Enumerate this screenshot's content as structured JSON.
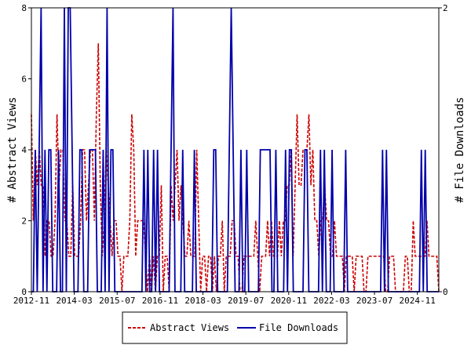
{
  "chart_data": {
    "type": "line",
    "title": "",
    "x_tick_labels": [
      "2012-11",
      "2014-03",
      "2015-07",
      "2016-11",
      "2018-03",
      "2019-07",
      "2020-11",
      "2022-03",
      "2023-07",
      "2024-11"
    ],
    "x_range": [
      "2012-11",
      "2025-07"
    ],
    "left_axis": {
      "label": "# Abstract Views",
      "range": [
        0,
        8
      ],
      "ticks": [
        "0",
        "2",
        "4",
        "6",
        "8"
      ]
    },
    "right_axis": {
      "label": "# File Downloads",
      "range": [
        0,
        2
      ],
      "ticks": [
        "0",
        "2"
      ]
    },
    "grid": false,
    "legend_position": "bottom",
    "series": [
      {
        "name": "Abstract Views",
        "axis": "left",
        "color": "#cc0000",
        "style": "dashed",
        "values": [
          5,
          2,
          4,
          3,
          4,
          3,
          3,
          1,
          2,
          2,
          1,
          1,
          2,
          5,
          3,
          4,
          4,
          2,
          2,
          1,
          1,
          3,
          1,
          1,
          1,
          2,
          4,
          4,
          2,
          3,
          4,
          4,
          2,
          5,
          7,
          3,
          1,
          2,
          4,
          3,
          2,
          1,
          2,
          2,
          1,
          1,
          0,
          1,
          1,
          1,
          2,
          5,
          4,
          1,
          2,
          2,
          2,
          2,
          1,
          0,
          1,
          0,
          1,
          0,
          1,
          1,
          3,
          0,
          1,
          1,
          0,
          3,
          2,
          3,
          4,
          2,
          3,
          2,
          1,
          1,
          2,
          1,
          1,
          1,
          4,
          2,
          0,
          1,
          1,
          0,
          1,
          1,
          0,
          1,
          0,
          1,
          1,
          2,
          0,
          1,
          1,
          1,
          2,
          2,
          1,
          1,
          0,
          0,
          1,
          1,
          1,
          1,
          1,
          1,
          2,
          1,
          0,
          1,
          1,
          1,
          2,
          1,
          2,
          1,
          1,
          1,
          2,
          1,
          2,
          2,
          3,
          3,
          4,
          1,
          3,
          5,
          3,
          3,
          4,
          4,
          4,
          5,
          3,
          4,
          2,
          2,
          1,
          2,
          2,
          3,
          2,
          2,
          1,
          1,
          2,
          1,
          1,
          1,
          1,
          0,
          1,
          1,
          1,
          1,
          0,
          1,
          1,
          1,
          1,
          0,
          0,
          1,
          1,
          1,
          1,
          1,
          1,
          1,
          1,
          1,
          0,
          0,
          1,
          1,
          1,
          0,
          0,
          0,
          0,
          0,
          1,
          1,
          0,
          0,
          2,
          1,
          1,
          1,
          1,
          1,
          1,
          2,
          1,
          1,
          1,
          1,
          1,
          0
        ]
      },
      {
        "name": "File Downloads",
        "axis": "right",
        "color": "#0000aa",
        "style": "solid",
        "values": [
          0,
          0,
          1,
          0,
          1,
          2,
          0,
          1,
          0,
          1,
          1,
          0,
          0,
          0,
          1,
          0,
          0,
          2,
          0,
          2,
          2,
          1,
          0,
          0,
          0,
          1,
          1,
          0,
          0,
          0,
          1,
          1,
          1,
          1,
          0,
          0,
          0,
          1,
          0,
          2,
          0,
          1,
          1,
          0,
          0,
          0,
          0,
          0,
          0,
          0,
          0,
          0,
          0,
          0,
          0,
          0,
          0,
          0,
          1,
          0,
          1,
          0,
          0,
          1,
          0,
          1,
          0,
          0,
          0,
          0,
          0,
          0,
          1,
          2,
          0,
          0,
          0,
          0,
          1,
          0,
          0,
          0,
          0,
          0,
          1,
          0,
          0,
          0,
          0,
          0,
          0,
          0,
          0,
          0,
          1,
          1,
          0,
          0,
          0,
          0,
          0,
          0,
          1,
          2,
          1,
          0,
          0,
          0,
          1,
          0,
          0,
          1,
          0,
          0,
          0,
          0,
          0,
          0,
          1,
          1,
          1,
          1,
          1,
          1,
          0,
          0,
          1,
          0,
          0,
          0,
          0,
          1,
          0,
          1,
          1,
          0,
          0,
          0,
          0,
          0,
          0,
          1,
          1,
          0,
          0,
          0,
          0,
          0,
          0,
          1,
          0,
          1,
          0,
          0,
          0,
          1,
          0,
          0,
          0,
          0,
          0,
          0,
          1,
          0,
          0,
          0,
          0,
          0,
          0,
          0,
          0,
          0,
          0,
          0,
          0,
          0,
          0,
          0,
          0,
          0,
          0,
          1,
          0,
          1,
          0,
          0,
          0,
          0,
          0,
          0,
          0,
          0,
          0,
          0,
          0,
          0,
          0,
          0,
          0,
          0,
          0,
          1,
          0,
          1,
          0,
          0,
          0,
          0,
          0,
          0,
          0
        ]
      }
    ]
  }
}
